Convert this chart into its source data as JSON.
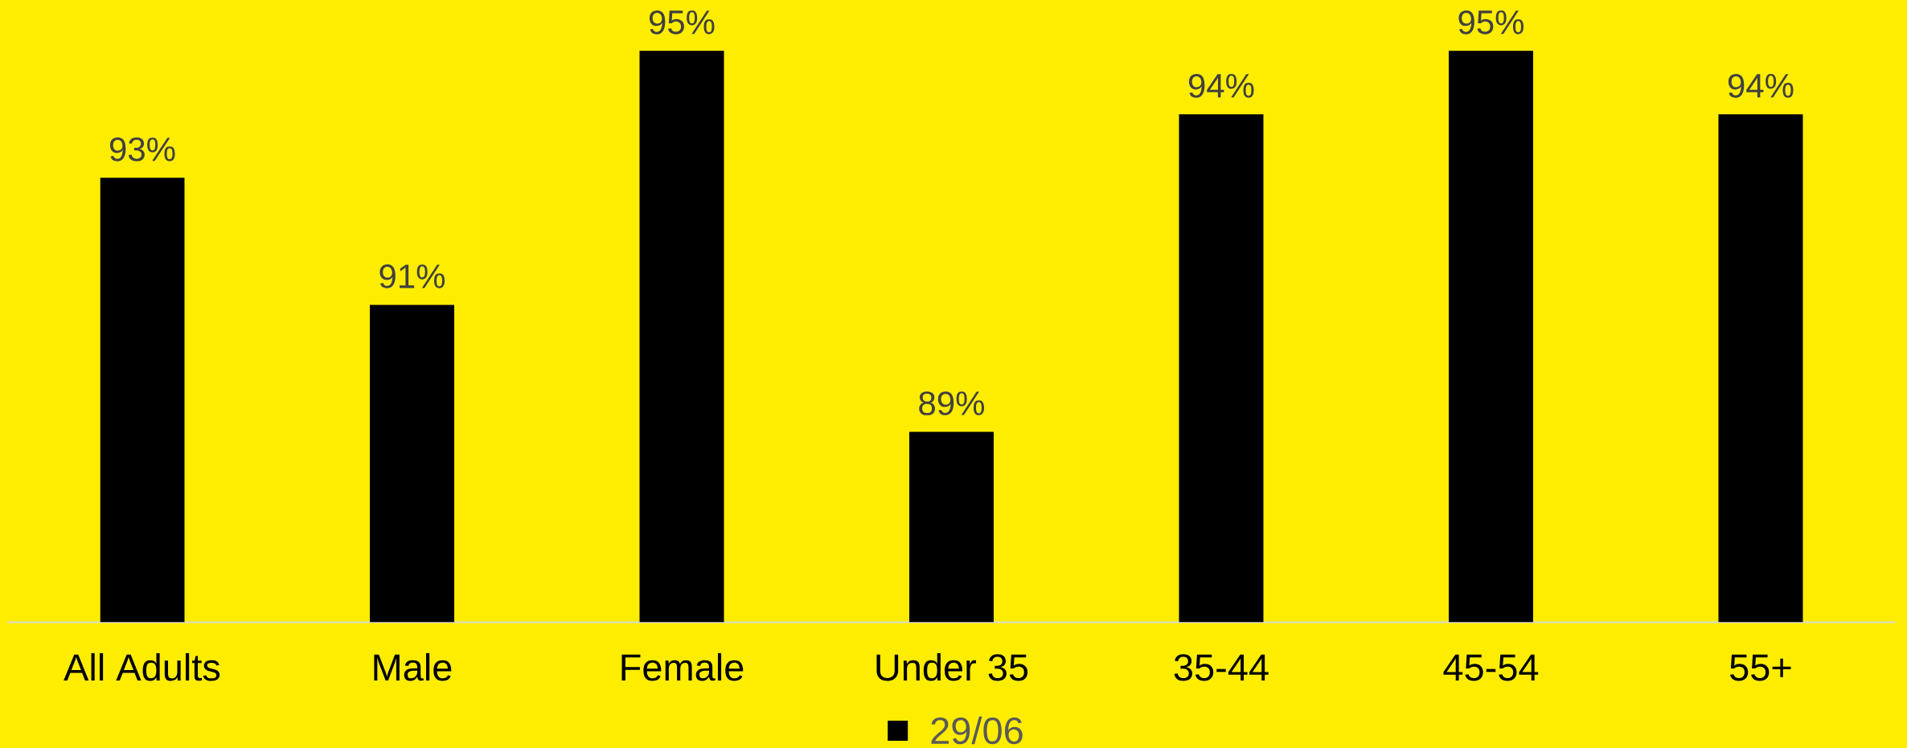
{
  "chart_data": {
    "type": "bar",
    "categories": [
      "All Adults",
      "Male",
      "Female",
      "Under 35",
      "35-44",
      "45-54",
      "55+"
    ],
    "series": [
      {
        "name": "29/06",
        "color": "#000000",
        "values": [
          93,
          91,
          95,
          89,
          94,
          95,
          94
        ],
        "value_labels": [
          "93%",
          "91%",
          "95%",
          "89%",
          "94%",
          "95%",
          "94%"
        ]
      }
    ],
    "ylim": [
      86,
      95.8
    ],
    "tick_labels": "x",
    "legend": "bottom"
  }
}
